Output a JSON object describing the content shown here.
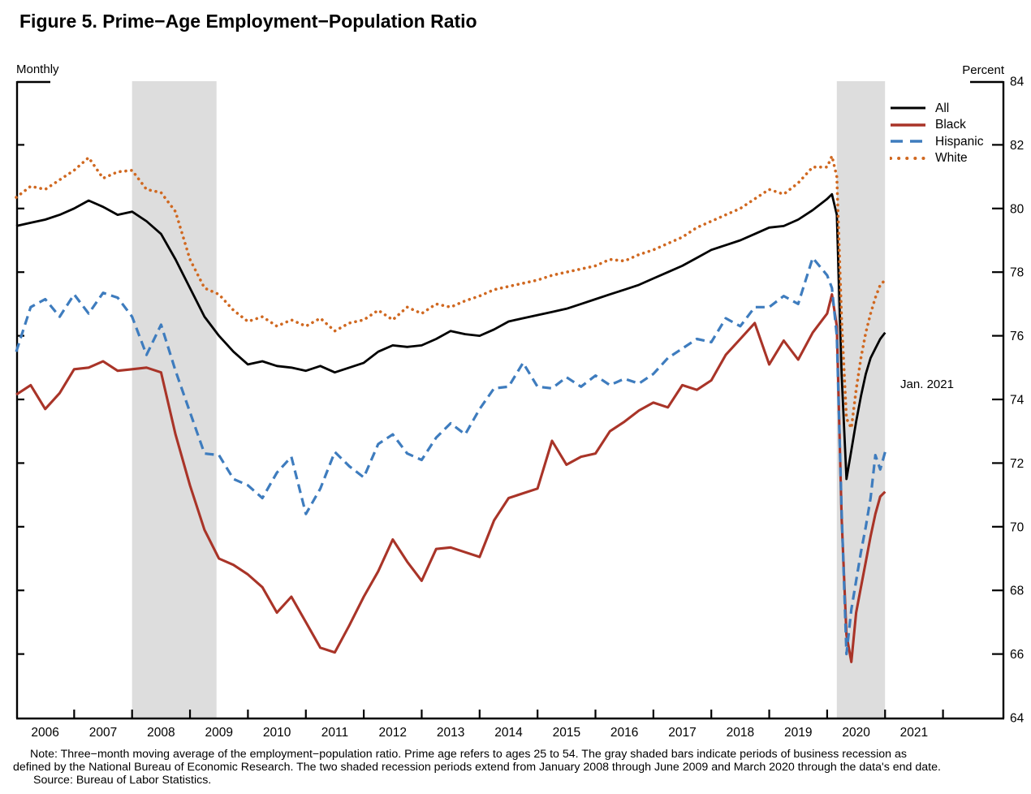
{
  "title": "Figure 5. Prime−Age Employment−Population Ratio",
  "frequency_label": "Monthly",
  "unit_label": "Percent",
  "annotation_label": "Jan. 2021",
  "note_lines": {
    "line1": "Note: Three−month moving average of the employment−population ratio. Prime age refers to ages 25 to 54. The gray shaded bars indicate periods of business recession as",
    "line2": "defined by the National Bureau of Economic Research. The two shaded recession periods extend from January 2008 through June 2009 and March 2020 through the data's end date.",
    "line3": "Source: Bureau of Labor Statistics."
  },
  "colors": {
    "all": "#000000",
    "black_series": "#A93428",
    "hispanic": "#3E7CBE",
    "white_series": "#D06820",
    "recession_band": "#DDDDDD",
    "axis": "#000000"
  },
  "chart_data": {
    "type": "line",
    "title": "Figure 5. Prime−Age Employment−Population Ratio",
    "xlabel": "",
    "ylabel": "Percent",
    "ylim": [
      64,
      84
    ],
    "xlim": [
      2006,
      2023.05
    ],
    "grid": false,
    "legend_position": "top-right",
    "yticks": [
      64,
      66,
      68,
      70,
      72,
      74,
      76,
      78,
      80,
      82,
      84
    ],
    "xticks_years": [
      2007,
      2008,
      2009,
      2010,
      2011,
      2012,
      2013,
      2014,
      2015,
      2016,
      2017,
      2018,
      2019,
      2020,
      2021,
      2022
    ],
    "year_labels": [
      "2006",
      "2007",
      "2008",
      "2009",
      "2010",
      "2011",
      "2012",
      "2013",
      "2014",
      "2015",
      "2016",
      "2017",
      "2018",
      "2019",
      "2020",
      "2021"
    ],
    "recession_bands": [
      {
        "start": 2008.0,
        "end": 2009.458,
        "label": "January 2008 through June 2009"
      },
      {
        "start": 2020.167,
        "end": 2021.0,
        "label": "March 2020 through the data's end date"
      }
    ],
    "x": [
      2006.0,
      2006.25,
      2006.5,
      2006.75,
      2007.0,
      2007.25,
      2007.5,
      2007.75,
      2008.0,
      2008.25,
      2008.5,
      2008.75,
      2009.0,
      2009.25,
      2009.5,
      2009.75,
      2010.0,
      2010.25,
      2010.5,
      2010.75,
      2011.0,
      2011.25,
      2011.5,
      2011.75,
      2012.0,
      2012.25,
      2012.5,
      2012.75,
      2013.0,
      2013.25,
      2013.5,
      2013.75,
      2014.0,
      2014.25,
      2014.5,
      2014.75,
      2015.0,
      2015.25,
      2015.5,
      2015.75,
      2016.0,
      2016.25,
      2016.5,
      2016.75,
      2017.0,
      2017.25,
      2017.5,
      2017.75,
      2018.0,
      2018.25,
      2018.5,
      2018.75,
      2019.0,
      2019.25,
      2019.5,
      2019.75,
      2020.0,
      2020.083,
      2020.167,
      2020.25,
      2020.333,
      2020.417,
      2020.5,
      2020.583,
      2020.667,
      2020.75,
      2020.833,
      2020.917,
      2021.0
    ],
    "series": [
      {
        "name": "All",
        "style": "solid",
        "color": "#000000",
        "values": [
          79.45,
          79.55,
          79.65,
          79.8,
          80.0,
          80.25,
          80.05,
          79.8,
          79.9,
          79.6,
          79.2,
          78.4,
          77.5,
          76.6,
          76.0,
          75.5,
          75.1,
          75.2,
          75.05,
          75.0,
          74.9,
          75.05,
          74.85,
          75.0,
          75.15,
          75.5,
          75.7,
          75.65,
          75.7,
          75.9,
          76.15,
          76.05,
          76.0,
          76.2,
          76.45,
          76.55,
          76.65,
          76.75,
          76.85,
          77.0,
          77.15,
          77.3,
          77.45,
          77.6,
          77.8,
          78.0,
          78.2,
          78.45,
          78.7,
          78.85,
          79.0,
          79.2,
          79.4,
          79.45,
          79.65,
          79.95,
          80.3,
          80.45,
          79.8,
          74.8,
          71.5,
          72.4,
          73.3,
          74.1,
          74.8,
          75.3,
          75.6,
          75.9,
          76.1
        ]
      },
      {
        "name": "Black",
        "style": "solid",
        "color": "#A93428",
        "values": [
          74.15,
          74.45,
          73.7,
          74.2,
          74.95,
          75.0,
          75.2,
          74.9,
          74.95,
          75.0,
          74.85,
          72.9,
          71.3,
          69.9,
          69.0,
          68.8,
          68.5,
          68.1,
          67.3,
          67.8,
          67.0,
          66.2,
          66.05,
          66.9,
          67.8,
          68.6,
          69.6,
          68.9,
          68.3,
          69.3,
          69.35,
          69.2,
          69.05,
          70.2,
          70.9,
          71.05,
          71.2,
          72.7,
          71.95,
          72.2,
          72.3,
          73.0,
          73.3,
          73.65,
          73.9,
          73.75,
          74.45,
          74.3,
          74.6,
          75.4,
          75.9,
          76.4,
          75.1,
          75.85,
          75.25,
          76.1,
          76.7,
          77.3,
          76.3,
          70.3,
          66.6,
          65.75,
          67.3,
          68.1,
          68.9,
          69.7,
          70.4,
          70.95,
          71.1
        ]
      },
      {
        "name": "Hispanic",
        "style": "dashed",
        "color": "#3E7CBE",
        "values": [
          75.5,
          76.9,
          77.15,
          76.6,
          77.3,
          76.7,
          77.35,
          77.2,
          76.6,
          75.4,
          76.35,
          74.9,
          73.6,
          72.3,
          72.25,
          71.5,
          71.3,
          70.9,
          71.7,
          72.2,
          70.4,
          71.2,
          72.35,
          71.9,
          71.55,
          72.6,
          72.9,
          72.3,
          72.1,
          72.8,
          73.25,
          72.9,
          73.7,
          74.35,
          74.4,
          75.15,
          74.4,
          74.35,
          74.7,
          74.4,
          74.75,
          74.45,
          74.65,
          74.5,
          74.8,
          75.3,
          75.6,
          75.9,
          75.8,
          76.55,
          76.3,
          76.9,
          76.9,
          77.25,
          77.0,
          78.45,
          77.9,
          77.5,
          76.0,
          70.5,
          66.0,
          67.4,
          68.3,
          69.2,
          70.0,
          70.9,
          72.25,
          71.8,
          72.35
        ]
      },
      {
        "name": "White",
        "style": "dotted",
        "color": "#D06820",
        "values": [
          80.35,
          80.7,
          80.6,
          80.9,
          81.2,
          81.6,
          80.95,
          81.15,
          81.2,
          80.6,
          80.5,
          79.9,
          78.4,
          77.5,
          77.3,
          76.8,
          76.45,
          76.6,
          76.3,
          76.5,
          76.3,
          76.55,
          76.15,
          76.4,
          76.5,
          76.8,
          76.5,
          76.9,
          76.7,
          77.0,
          76.9,
          77.1,
          77.25,
          77.45,
          77.55,
          77.65,
          77.75,
          77.9,
          78.0,
          78.1,
          78.2,
          78.4,
          78.35,
          78.55,
          78.7,
          78.9,
          79.1,
          79.4,
          79.6,
          79.8,
          80.0,
          80.3,
          80.6,
          80.45,
          80.8,
          81.3,
          81.3,
          81.65,
          81.0,
          76.5,
          73.4,
          73.1,
          74.3,
          75.3,
          76.1,
          76.7,
          77.2,
          77.6,
          77.75
        ]
      }
    ]
  }
}
